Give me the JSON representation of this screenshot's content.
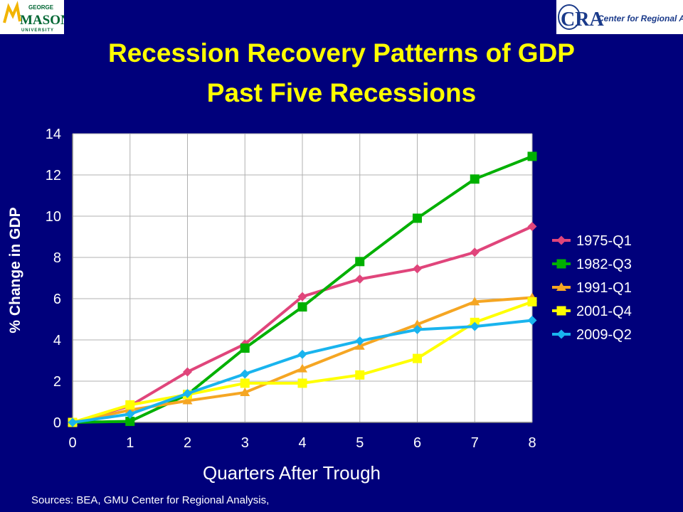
{
  "header": {
    "title_line1": "Recession Recovery Patterns of GDP",
    "title_line2": "Past Five Recessions",
    "logo_left": {
      "top": "GEORGE",
      "main": "MASON",
      "bottom": "UNIVERSITY"
    },
    "logo_right": {
      "mark": "CRA",
      "text": "Center for Regional Analysis"
    }
  },
  "footer": {
    "source": "Sources: BEA, GMU Center for Regional Analysis,"
  },
  "chart_data": {
    "type": "line",
    "title": "Recession Recovery Patterns of GDP Past Five Recessions",
    "xlabel": "Quarters After Trough",
    "ylabel": "% Change in GDP",
    "x": [
      0,
      1,
      2,
      3,
      4,
      5,
      6,
      7,
      8
    ],
    "xlim": [
      0,
      8
    ],
    "ylim": [
      0,
      14
    ],
    "yticks": [
      0,
      2,
      4,
      6,
      8,
      10,
      12,
      14
    ],
    "grid": true,
    "legend_position": "right",
    "series": [
      {
        "name": "1975-Q1",
        "color": "#e0457b",
        "marker": "diamond",
        "values": [
          0,
          0.8,
          2.45,
          3.8,
          6.1,
          6.95,
          7.45,
          8.25,
          9.5
        ]
      },
      {
        "name": "1982-Q3",
        "color": "#00b000",
        "marker": "square",
        "values": [
          0,
          0.05,
          1.35,
          3.6,
          5.6,
          7.8,
          9.9,
          11.8,
          12.9
        ]
      },
      {
        "name": "1991-Q1",
        "color": "#f5a623",
        "marker": "triangle",
        "values": [
          0,
          0.6,
          1.05,
          1.45,
          2.6,
          3.7,
          4.75,
          5.85,
          6.05
        ]
      },
      {
        "name": "2001-Q4",
        "color": "#ffff00",
        "marker": "square",
        "values": [
          0,
          0.85,
          1.35,
          1.9,
          1.9,
          2.3,
          3.1,
          4.85,
          5.85
        ]
      },
      {
        "name": "2009-Q2",
        "color": "#19b4ee",
        "marker": "diamond",
        "values": [
          0,
          0.4,
          1.4,
          2.35,
          3.3,
          3.95,
          4.5,
          4.65,
          4.95
        ]
      }
    ]
  }
}
